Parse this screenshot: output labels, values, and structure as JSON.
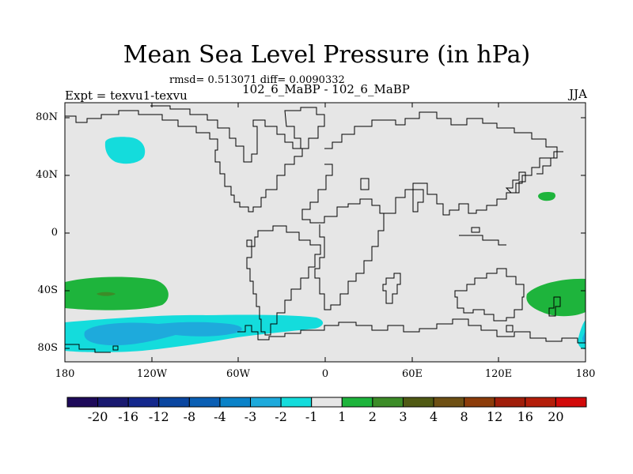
{
  "title": "Mean Sea Level Pressure (in hPa)",
  "stats": "rmsd= 0.513071 diff= 0.0090332",
  "left_subtitle": "Expt = texvu1-texvu",
  "center_subtitle": "102_6_MaBP - 102_6_MaBP",
  "right_subtitle": "JJA",
  "y_ticks": [
    "80N",
    "40N",
    "0",
    "40S",
    "80S"
  ],
  "x_ticks": [
    "180",
    "120W",
    "60W",
    "0",
    "60E",
    "120E",
    "180"
  ],
  "colorbar": {
    "labels": [
      "-20",
      "-16",
      "-12",
      "-8",
      "-4",
      "-3",
      "-2",
      "-1",
      "1",
      "2",
      "3",
      "4",
      "8",
      "12",
      "16",
      "20"
    ],
    "colors": [
      "#1e0a5a",
      "#191970",
      "#14288c",
      "#0a46a0",
      "#0a5fb4",
      "#0a82c8",
      "#1eaadc",
      "#14dcdc",
      "#e6e6e6",
      "#1eb43c",
      "#3c8c28",
      "#505a14",
      "#6e5014",
      "#8c3c0a",
      "#a01e0a",
      "#b41e0a",
      "#d20a0a"
    ]
  },
  "map_data": {
    "projection": "cylindrical equidistant",
    "lon_range": [
      -180,
      180
    ],
    "lat_range": [
      -90,
      90
    ],
    "variable": "Mean Sea Level Pressure difference",
    "units": "hPa",
    "background_color": "#e6e6e6",
    "features": [
      {
        "name": "north-pacific-negative",
        "level": "-2 to -1",
        "color": "#14dcdc"
      },
      {
        "name": "north-pacific-east-positive",
        "level": "1 to 2",
        "color": "#1eb43c"
      },
      {
        "name": "south-pacific-positive",
        "level": "1 to 2",
        "color": "#1eb43c"
      },
      {
        "name": "south-pacific-positive-core",
        "level": "2 to 3",
        "color": "#3c8c28"
      },
      {
        "name": "southern-ocean-negative",
        "level": "-2 to -1",
        "color": "#14dcdc"
      },
      {
        "name": "southern-ocean-negative-core",
        "level": "-3 to -2",
        "color": "#1eaadc"
      },
      {
        "name": "south-indian-positive",
        "level": "1 to 2",
        "color": "#1eb43c"
      }
    ]
  }
}
